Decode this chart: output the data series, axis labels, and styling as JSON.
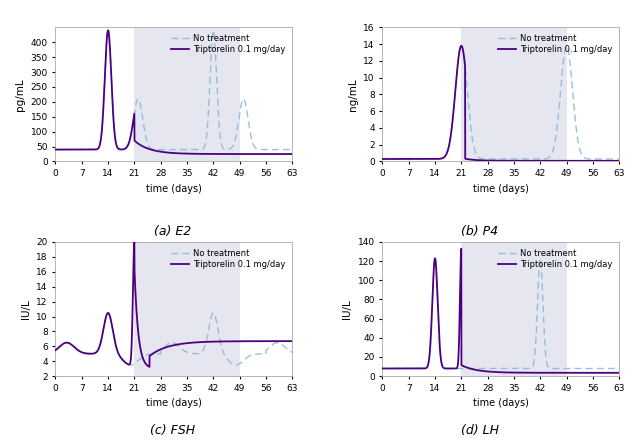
{
  "title_a": "(a) E2",
  "title_b": "(b) P4",
  "title_c": "(c) FSH",
  "title_d": "(d) LH",
  "ylabel_a": "pg/mL",
  "ylabel_b": "ng/mL",
  "ylabel_cd": "IU/L",
  "xlabel": "time (days)",
  "legend_no_treatment": "No treatment",
  "legend_trip": "Triptorelin 0.1 mg/day",
  "xlim": [
    0,
    63
  ],
  "xticks": [
    0,
    7,
    14,
    21,
    28,
    35,
    42,
    49,
    56,
    63
  ],
  "ylim_e2": [
    0,
    450
  ],
  "yticks_e2": [
    0,
    50,
    100,
    150,
    200,
    250,
    300,
    350,
    400
  ],
  "ylim_p4": [
    0,
    16
  ],
  "yticks_p4": [
    0,
    2,
    4,
    6,
    8,
    10,
    12,
    14,
    16
  ],
  "ylim_fsh": [
    2,
    20
  ],
  "yticks_fsh": [
    2,
    4,
    6,
    8,
    10,
    12,
    14,
    16,
    18,
    20
  ],
  "ylim_lh": [
    0,
    140
  ],
  "yticks_lh": [
    0,
    20,
    40,
    60,
    80,
    100,
    120,
    140
  ],
  "shade_start": 21,
  "shade_end": 49,
  "shade_color": "#e6e6f0",
  "line_color_treatment": "#4b0082",
  "line_color_no_treatment": "#90b8d8",
  "background": "#ffffff"
}
